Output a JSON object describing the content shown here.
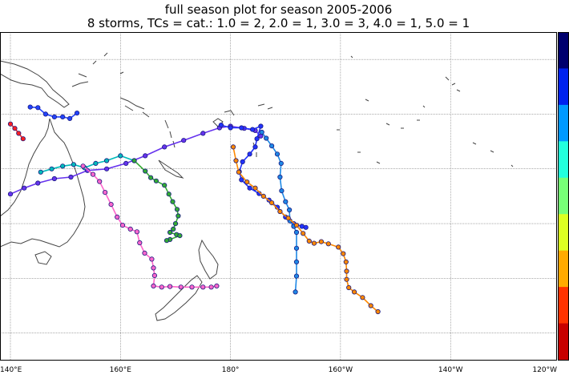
{
  "title_line1": "full season plot for season 2005-2006",
  "title_line2": "8 storms, TCs = cat.: 1.0 = 2, 2.0 = 1, 3.0 = 3, 4.0 = 1, 5.0 = 1",
  "x_tick_labels": [
    "140°E",
    "160°E",
    "180°",
    "160°W",
    "140°W",
    "120°W"
  ],
  "colorbar_colors": [
    "#00006e",
    "#0022ee",
    "#0099ff",
    "#22ffdd",
    "#77ff77",
    "#ddff22",
    "#ffaa00",
    "#ff3300",
    "#c80000"
  ],
  "chart_data": {
    "type": "map-tracks",
    "x_range_deg": [
      140,
      240
    ],
    "y_range_deg": [
      -55,
      5
    ],
    "grid": true,
    "legend": "colorbar-right",
    "tracks": [
      {
        "color": "#ff2020",
        "points": [
          [
            140.0,
            -11.8
          ],
          [
            140.8,
            -12.6
          ],
          [
            141.5,
            -13.5
          ],
          [
            142.3,
            -14.5
          ]
        ]
      },
      {
        "color": "#2244ff",
        "points": [
          [
            143.6,
            -8.7
          ],
          [
            145.0,
            -8.8
          ],
          [
            146.4,
            -10.0
          ],
          [
            148.0,
            -10.5
          ],
          [
            149.5,
            -10.5
          ],
          [
            150.8,
            -10.8
          ],
          [
            152.1,
            -9.8
          ]
        ]
      },
      {
        "color": "#6633ee",
        "points": [
          [
            140.0,
            -24.6
          ],
          [
            142.5,
            -23.5
          ],
          [
            145.0,
            -22.6
          ],
          [
            148.0,
            -21.8
          ],
          [
            151.0,
            -21.5
          ],
          [
            154.0,
            -20.3
          ],
          [
            157.5,
            -20.0
          ],
          [
            161.0,
            -19.0
          ],
          [
            164.5,
            -17.6
          ],
          [
            168.0,
            -16.0
          ],
          [
            171.5,
            -14.8
          ],
          [
            175.0,
            -13.5
          ],
          [
            178.0,
            -12.5
          ],
          [
            180.0,
            -12.2
          ],
          [
            182.5,
            -12.6
          ],
          [
            184.5,
            -13.0
          ],
          [
            185.5,
            -14.0
          ]
        ]
      },
      {
        "color": "#00bbbb",
        "points": [
          [
            145.5,
            -20.6
          ],
          [
            147.5,
            -20.0
          ],
          [
            149.5,
            -19.5
          ],
          [
            151.5,
            -19.2
          ],
          [
            153.5,
            -19.8
          ],
          [
            155.5,
            -19.0
          ],
          [
            157.5,
            -18.5
          ],
          [
            160.0,
            -17.6
          ],
          [
            162.5,
            -18.5
          ]
        ]
      },
      {
        "color": "#33aa33",
        "points": [
          [
            162.5,
            -18.5
          ],
          [
            164.5,
            -20.4
          ],
          [
            165.5,
            -21.6
          ],
          [
            166.5,
            -22.2
          ],
          [
            168.0,
            -23.0
          ],
          [
            168.8,
            -24.6
          ],
          [
            169.5,
            -26.0
          ],
          [
            170.3,
            -27.4
          ],
          [
            170.5,
            -28.6
          ],
          [
            170.0,
            -30.0
          ],
          [
            169.6,
            -31.0
          ],
          [
            169.0,
            -31.6
          ],
          [
            170.2,
            -32.0
          ],
          [
            170.8,
            -32.2
          ],
          [
            169.0,
            -32.9
          ],
          [
            168.4,
            -33.1
          ]
        ]
      },
      {
        "color": "#ff66cc",
        "points": [
          [
            153.2,
            -19.5
          ],
          [
            155.0,
            -21.0
          ],
          [
            156.2,
            -22.3
          ],
          [
            157.2,
            -24.3
          ],
          [
            158.3,
            -26.5
          ],
          [
            159.4,
            -28.8
          ],
          [
            160.4,
            -30.3
          ],
          [
            161.8,
            -31.0
          ],
          [
            163.0,
            -31.5
          ],
          [
            163.5,
            -33.5
          ],
          [
            164.4,
            -35.4
          ],
          [
            165.7,
            -36.5
          ],
          [
            166.0,
            -38.1
          ],
          [
            166.2,
            -39.5
          ],
          [
            166.0,
            -41.4
          ],
          [
            167.5,
            -41.6
          ],
          [
            169.0,
            -41.5
          ],
          [
            171.0,
            -41.6
          ],
          [
            173.0,
            -41.6
          ],
          [
            175.0,
            -41.6
          ],
          [
            176.5,
            -41.6
          ],
          [
            177.5,
            -41.4
          ]
        ]
      },
      {
        "color": "#2233ff",
        "points": [
          [
            178.3,
            -12.0
          ],
          [
            180.0,
            -12.5
          ],
          [
            182.0,
            -12.5
          ],
          [
            184.0,
            -12.8
          ],
          [
            185.5,
            -12.2
          ],
          [
            184.8,
            -14.5
          ],
          [
            184.5,
            -16.0
          ],
          [
            183.5,
            -17.3
          ],
          [
            182.2,
            -18.7
          ],
          [
            181.6,
            -20.5
          ],
          [
            182.0,
            -22.0
          ],
          [
            183.5,
            -23.5
          ],
          [
            185.2,
            -24.5
          ],
          [
            187.0,
            -25.7
          ],
          [
            188.5,
            -27.0
          ],
          [
            190.0,
            -28.8
          ],
          [
            191.5,
            -30.0
          ],
          [
            193.0,
            -30.5
          ],
          [
            193.7,
            -30.7
          ]
        ]
      },
      {
        "color": "#1e88e5",
        "points": [
          [
            185.7,
            -13.3
          ],
          [
            186.5,
            -14.4
          ],
          [
            187.5,
            -15.8
          ],
          [
            188.5,
            -17.3
          ],
          [
            189.2,
            -19.0
          ],
          [
            189.0,
            -21.5
          ],
          [
            189.3,
            -24.0
          ],
          [
            190.0,
            -26.0
          ],
          [
            190.7,
            -27.5
          ],
          [
            190.8,
            -29.5
          ],
          [
            191.5,
            -30.5
          ],
          [
            192.0,
            -31.6
          ],
          [
            192.0,
            -34.5
          ],
          [
            192.0,
            -37.0
          ],
          [
            192.0,
            -39.6
          ],
          [
            191.8,
            -42.5
          ]
        ]
      },
      {
        "color": "#ff8800",
        "points": [
          [
            180.5,
            -16.0
          ],
          [
            181.0,
            -18.5
          ],
          [
            181.5,
            -20.6
          ],
          [
            183.0,
            -22.4
          ],
          [
            184.5,
            -23.5
          ],
          [
            186.0,
            -25.0
          ],
          [
            187.5,
            -26.2
          ],
          [
            189.0,
            -27.8
          ],
          [
            190.5,
            -29.0
          ],
          [
            192.0,
            -30.3
          ],
          [
            193.2,
            -31.8
          ],
          [
            194.3,
            -33.2
          ],
          [
            195.2,
            -33.6
          ],
          [
            196.5,
            -33.3
          ],
          [
            197.8,
            -33.7
          ],
          [
            199.6,
            -34.3
          ],
          [
            200.5,
            -35.5
          ],
          [
            201.0,
            -37.0
          ],
          [
            201.1,
            -38.7
          ],
          [
            201.1,
            -40.2
          ],
          [
            201.5,
            -41.7
          ],
          [
            202.5,
            -42.5
          ],
          [
            204.0,
            -43.5
          ],
          [
            205.5,
            -45.0
          ],
          [
            206.8,
            -46.1
          ]
        ]
      }
    ]
  }
}
